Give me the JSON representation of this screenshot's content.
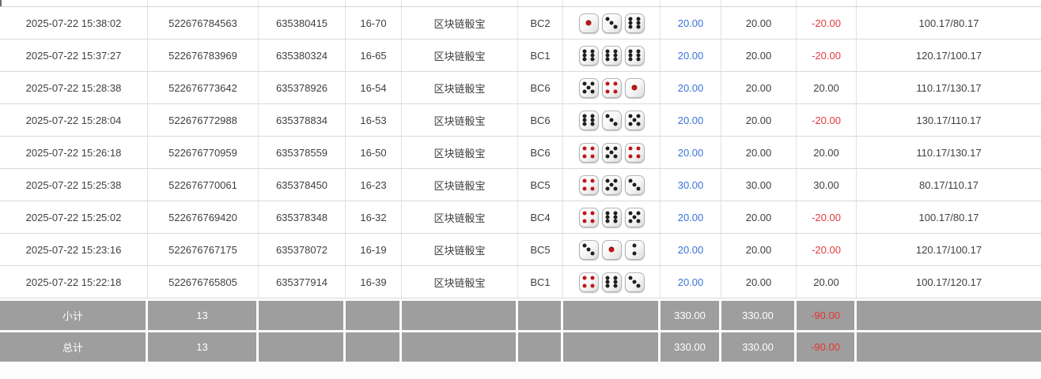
{
  "colors": {
    "bet_amount_blue": "#3b73d8",
    "negative_red": "#e23b3c",
    "summary_gray_bg": "#9e9e9e",
    "row_border": "#d9d9d9",
    "red_pip": "#bf1717",
    "black_pip": "#1f1f1f"
  },
  "rows": [
    {
      "time": "2025-07-22 15:38:02",
      "bet_id": "522676784563",
      "round_id": "635380415",
      "table_round": "16-70",
      "game": "区块链骰宝",
      "table_code": "BC2",
      "dice": [
        1,
        3,
        6
      ],
      "bet": "20.00",
      "valid": "20.00",
      "win_loss": "-20.00",
      "balance": "100.17/80.17"
    },
    {
      "time": "2025-07-22 15:37:27",
      "bet_id": "522676783969",
      "round_id": "635380324",
      "table_round": "16-65",
      "game": "区块链骰宝",
      "table_code": "BC1",
      "dice": [
        6,
        6,
        6
      ],
      "bet": "20.00",
      "valid": "20.00",
      "win_loss": "-20.00",
      "balance": "120.17/100.17"
    },
    {
      "time": "2025-07-22 15:28:38",
      "bet_id": "522676773642",
      "round_id": "635378926",
      "table_round": "16-54",
      "game": "区块链骰宝",
      "table_code": "BC6",
      "dice": [
        5,
        4,
        1
      ],
      "bet": "20.00",
      "valid": "20.00",
      "win_loss": "20.00",
      "balance": "110.17/130.17"
    },
    {
      "time": "2025-07-22 15:28:04",
      "bet_id": "522676772988",
      "round_id": "635378834",
      "table_round": "16-53",
      "game": "区块链骰宝",
      "table_code": "BC6",
      "dice": [
        6,
        3,
        5
      ],
      "bet": "20.00",
      "valid": "20.00",
      "win_loss": "-20.00",
      "balance": "130.17/110.17"
    },
    {
      "time": "2025-07-22 15:26:18",
      "bet_id": "522676770959",
      "round_id": "635378559",
      "table_round": "16-50",
      "game": "区块链骰宝",
      "table_code": "BC6",
      "dice": [
        4,
        5,
        4
      ],
      "bet": "20.00",
      "valid": "20.00",
      "win_loss": "20.00",
      "balance": "110.17/130.17"
    },
    {
      "time": "2025-07-22 15:25:38",
      "bet_id": "522676770061",
      "round_id": "635378450",
      "table_round": "16-23",
      "game": "区块链骰宝",
      "table_code": "BC5",
      "dice": [
        4,
        5,
        3
      ],
      "bet": "30.00",
      "valid": "30.00",
      "win_loss": "30.00",
      "balance": "80.17/110.17"
    },
    {
      "time": "2025-07-22 15:25:02",
      "bet_id": "522676769420",
      "round_id": "635378348",
      "table_round": "16-32",
      "game": "区块链骰宝",
      "table_code": "BC4",
      "dice": [
        4,
        6,
        5
      ],
      "bet": "20.00",
      "valid": "20.00",
      "win_loss": "-20.00",
      "balance": "100.17/80.17"
    },
    {
      "time": "2025-07-22 15:23:16",
      "bet_id": "522676767175",
      "round_id": "635378072",
      "table_round": "16-19",
      "game": "区块链骰宝",
      "table_code": "BC5",
      "dice": [
        3,
        1,
        2
      ],
      "bet": "20.00",
      "valid": "20.00",
      "win_loss": "-20.00",
      "balance": "120.17/100.17"
    },
    {
      "time": "2025-07-22 15:22:18",
      "bet_id": "522676765805",
      "round_id": "635377914",
      "table_round": "16-39",
      "game": "区块链骰宝",
      "table_code": "BC1",
      "dice": [
        4,
        6,
        3
      ],
      "bet": "20.00",
      "valid": "20.00",
      "win_loss": "20.00",
      "balance": "100.17/120.17"
    }
  ],
  "summary": [
    {
      "label": "小计",
      "count": "13",
      "bet": "330.00",
      "valid": "330.00",
      "win_loss": "-90.00"
    },
    {
      "label": "总计",
      "count": "13",
      "bet": "330.00",
      "valid": "330.00",
      "win_loss": "-90.00"
    }
  ]
}
